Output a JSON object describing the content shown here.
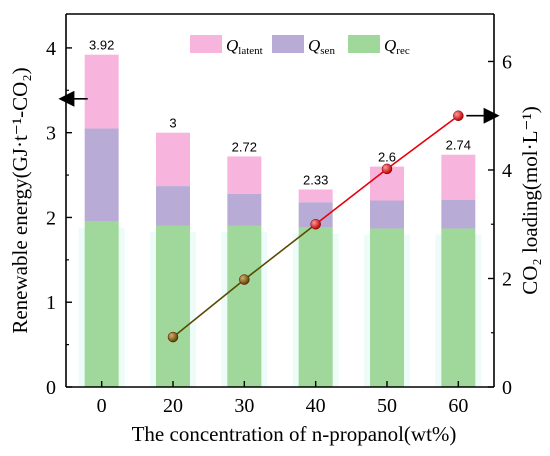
{
  "chart_data": {
    "type": "bar",
    "stacked": true,
    "categories": [
      "0",
      "20",
      "30",
      "40",
      "50",
      "60"
    ],
    "xlabel": "The concentration of n-propanol(wt%)",
    "ylabel_left": "Renewable energy(GJ·t⁻¹-CO₂)",
    "ylabel_right": "CO₂ loading(mol·L⁻¹)",
    "ylim_left": [
      0,
      4.4
    ],
    "ylim_right": [
      0,
      6.875
    ],
    "yticks_left": [
      0,
      1,
      2,
      3,
      4
    ],
    "yticks_right": [
      0,
      2,
      4,
      6
    ],
    "series": [
      {
        "name": "Q_rec",
        "label_main": "Q",
        "label_sub": "rec",
        "color": "#9fd89a",
        "values": [
          1.95,
          1.9,
          1.9,
          1.88,
          1.87,
          1.87
        ]
      },
      {
        "name": "Q_sen",
        "label_main": "Q",
        "label_sub": "sen",
        "color": "#b8acd6",
        "values": [
          1.1,
          0.47,
          0.38,
          0.3,
          0.33,
          0.34
        ]
      },
      {
        "name": "Q_latent",
        "label_main": "Q",
        "label_sub": "latent",
        "color": "#f7b4dc",
        "values": [
          0.87,
          0.63,
          0.44,
          0.15,
          0.4,
          0.53
        ]
      }
    ],
    "totals_labels": [
      "3.92",
      "3",
      "2.72",
      "2.33",
      "2.6",
      "2.74"
    ],
    "line_series": {
      "axis": "right",
      "categories": [
        "20",
        "30",
        "40",
        "50",
        "60"
      ],
      "values": [
        0.92,
        1.98,
        3.0,
        4.02,
        5.0
      ],
      "color": "#e8000b"
    },
    "legend": {
      "position": "top",
      "order": [
        "Q_latent",
        "Q_sen",
        "Q_rec"
      ]
    },
    "grid": false
  }
}
